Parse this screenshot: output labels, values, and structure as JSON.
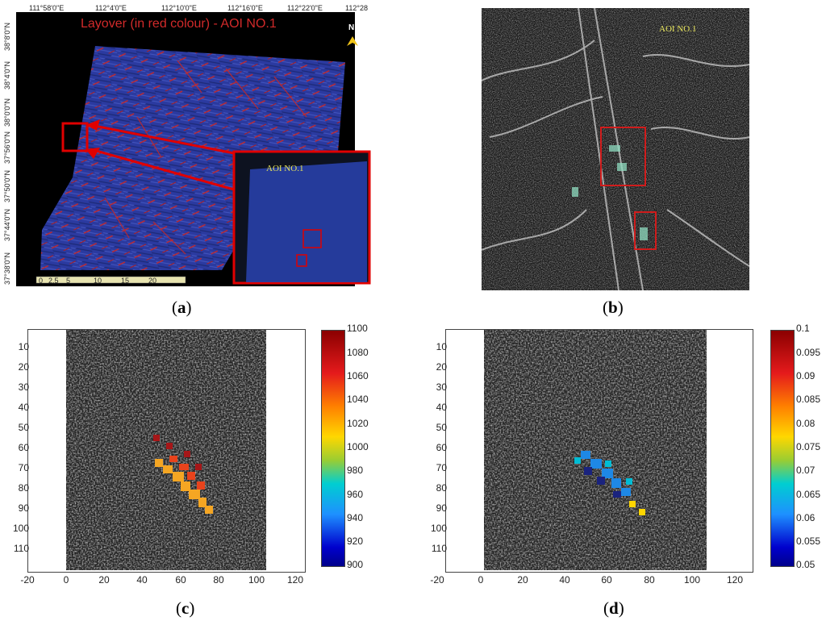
{
  "panels": {
    "a": {
      "label": "a",
      "title": "Layover (in red colour) - AOI NO.1",
      "north": "N",
      "inset_label": "AOI NO.1",
      "top_coords": [
        "111°58'0\"E",
        "112°4'0\"E",
        "112°10'0\"E",
        "112°16'0\"E",
        "112°22'0\"E",
        "112°28"
      ],
      "left_coords": [
        "38°8'0\"N",
        "38°4'0\"N",
        "38°0'0\"N",
        "37°56'0\"N",
        "37°50'0\"N",
        "37°44'0\"N",
        "37°38'0\"N"
      ],
      "scale_ticks": [
        "0",
        "2.5",
        "5",
        "10",
        "15",
        "20"
      ],
      "colors": {
        "background": "#000000",
        "terrain": "#2b3aa0",
        "layover": "#c62828",
        "box": "#e00000"
      }
    },
    "b": {
      "label": "b",
      "inset_label": "AOI NO.1",
      "colors": {
        "background": "#1a1a1a",
        "box": "#d01c1c",
        "highlight": "#7fd6b0"
      }
    },
    "c": {
      "label": "c",
      "y_ticks": [
        "10",
        "20",
        "30",
        "40",
        "50",
        "60",
        "70",
        "80",
        "90",
        "100",
        "110"
      ],
      "x_ticks": [
        "-20",
        "0",
        "20",
        "40",
        "60",
        "80",
        "100",
        "120"
      ],
      "colorbar_ticks": [
        "1100",
        "1080",
        "1060",
        "1040",
        "1020",
        "1000",
        "980",
        "960",
        "940",
        "920",
        "900"
      ]
    },
    "d": {
      "label": "d",
      "y_ticks": [
        "10",
        "20",
        "30",
        "40",
        "50",
        "60",
        "70",
        "80",
        "90",
        "100",
        "110"
      ],
      "x_ticks": [
        "-20",
        "0",
        "20",
        "40",
        "60",
        "80",
        "100",
        "120"
      ],
      "colorbar_ticks": [
        "0.1",
        "0.095",
        "0.09",
        "0.085",
        "0.08",
        "0.075",
        "0.07",
        "0.065",
        "0.06",
        "0.055",
        "0.05"
      ]
    }
  }
}
